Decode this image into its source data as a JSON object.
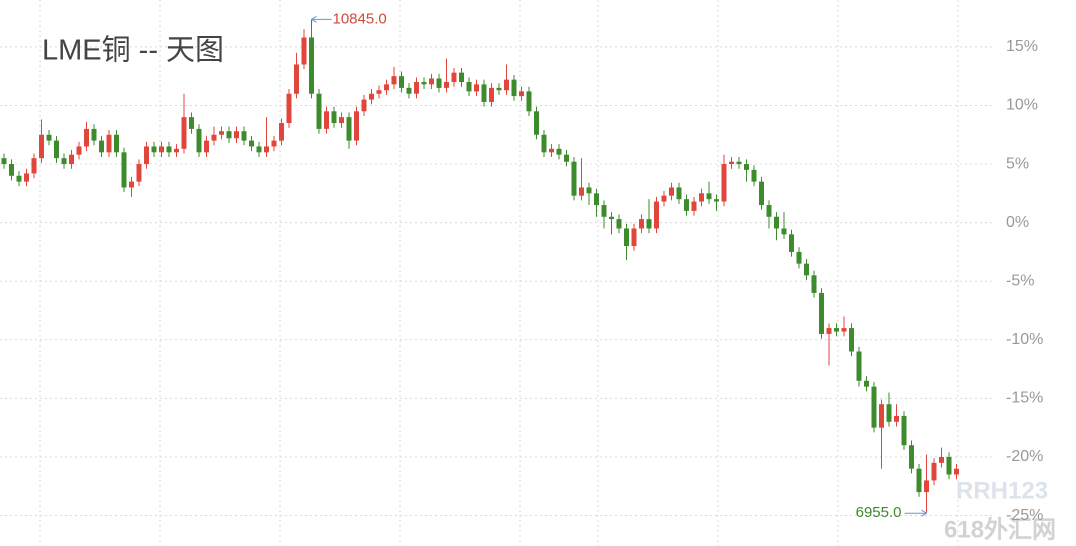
{
  "chart_data": {
    "type": "candlestick",
    "title": "LME铜 -- 天图",
    "open": [
      5.5,
      5.0,
      4.0,
      3.5,
      4.2,
      5.5,
      7.5,
      7.0,
      5.5,
      5.0,
      5.8,
      6.5,
      8.0,
      7.0,
      6.0,
      7.5,
      6.0,
      3.0,
      3.5,
      5.0,
      6.5,
      6.0,
      6.5,
      6.0,
      6.3,
      9.0,
      8.0,
      6.0,
      7.0,
      7.5,
      7.8,
      7.2,
      7.8,
      7.0,
      6.5,
      6.0,
      6.5,
      7.0,
      8.5,
      11.0,
      13.5,
      15.8,
      11.0,
      8.0,
      9.5,
      8.5,
      9.0,
      7.0,
      9.5,
      10.5,
      11.0,
      11.3,
      11.8,
      12.5,
      11.5,
      11.0,
      12.0,
      11.8,
      12.3,
      11.5,
      12.0,
      12.8,
      12.0,
      11.2,
      11.8,
      10.3,
      11.5,
      11.3,
      12.2,
      10.8,
      11.2,
      9.5,
      7.5,
      6.0,
      6.3,
      5.8,
      5.2,
      2.3,
      3.0,
      2.5,
      1.5,
      0.5,
      0.3,
      -0.5,
      -2.0,
      -0.5,
      0.3,
      -0.5,
      1.8,
      2.3,
      3.0,
      2.0,
      1.0,
      1.8,
      2.5,
      2.0,
      1.8,
      5.0,
      5.2,
      5.0,
      4.5,
      3.5,
      1.5,
      0.5,
      -0.5,
      -1.0,
      -2.5,
      -3.5,
      -4.5,
      -6.0,
      -9.5,
      -9.0,
      -9.3,
      -9.0,
      -11.0,
      -13.5,
      -14.0,
      -17.5,
      -15.5,
      -17.0,
      -16.5,
      -19.0,
      -21.0,
      -23.0,
      -22.0,
      -20.5,
      -20.0,
      -21.5
    ],
    "high": [
      5.9,
      5.4,
      4.4,
      4.6,
      5.9,
      8.8,
      7.9,
      7.4,
      5.9,
      6.2,
      6.9,
      8.6,
      8.4,
      7.4,
      7.9,
      7.9,
      6.4,
      3.9,
      5.4,
      6.9,
      6.9,
      6.9,
      6.9,
      6.7,
      11.0,
      9.4,
      8.4,
      7.4,
      8.2,
      8.2,
      8.2,
      8.2,
      8.2,
      7.4,
      6.9,
      9.0,
      7.4,
      8.9,
      11.4,
      14.5,
      16.5,
      17.35,
      11.4,
      9.9,
      9.9,
      9.4,
      9.4,
      9.9,
      10.9,
      11.4,
      11.7,
      12.2,
      13.3,
      12.9,
      11.9,
      12.4,
      12.4,
      12.7,
      12.7,
      14.0,
      13.2,
      13.2,
      12.4,
      12.2,
      12.2,
      11.9,
      11.9,
      13.5,
      12.6,
      11.6,
      11.6,
      9.9,
      7.9,
      6.7,
      6.7,
      6.2,
      5.6,
      5.5,
      3.4,
      2.9,
      1.9,
      0.9,
      0.7,
      -0.1,
      -0.1,
      0.7,
      2.0,
      2.2,
      2.7,
      3.4,
      3.4,
      2.4,
      2.2,
      2.9,
      3.5,
      2.4,
      5.8,
      5.6,
      5.6,
      5.4,
      4.9,
      3.9,
      1.9,
      0.9,
      0.9,
      -0.6,
      -2.1,
      -3.1,
      -4.1,
      -5.6,
      -8.6,
      -8.6,
      -8.0,
      -8.6,
      -10.6,
      -13.1,
      -13.6,
      -15.1,
      -14.5,
      -15.5,
      -16.1,
      -18.6,
      -20.6,
      -19.8,
      -20.1,
      -19.2,
      -19.6,
      -20.6
    ],
    "low": [
      4.6,
      3.6,
      3.1,
      3.1,
      3.8,
      5.1,
      6.6,
      5.1,
      4.6,
      4.6,
      5.4,
      6.1,
      6.6,
      5.6,
      5.6,
      5.6,
      2.6,
      2.2,
      3.1,
      4.6,
      5.6,
      5.6,
      5.6,
      5.6,
      5.9,
      7.6,
      5.6,
      5.6,
      6.6,
      7.1,
      6.8,
      6.8,
      6.6,
      6.1,
      5.6,
      5.6,
      6.1,
      6.6,
      8.1,
      10.6,
      13.1,
      10.6,
      7.6,
      7.6,
      8.1,
      8.1,
      6.3,
      6.6,
      9.1,
      10.1,
      10.6,
      10.9,
      11.4,
      11.1,
      10.6,
      10.6,
      11.4,
      11.4,
      11.1,
      11.1,
      11.6,
      11.6,
      10.8,
      10.8,
      9.9,
      9.9,
      10.9,
      10.9,
      10.4,
      10.4,
      9.1,
      7.1,
      5.6,
      5.6,
      5.4,
      4.8,
      1.9,
      1.9,
      1.5,
      0.5,
      -0.5,
      -1.0,
      -0.9,
      -3.2,
      -2.4,
      -0.9,
      -0.9,
      -0.9,
      1.4,
      1.9,
      1.6,
      0.6,
      0.6,
      1.4,
      1.6,
      1.0,
      1.4,
      4.6,
      4.6,
      3.5,
      3.1,
      1.1,
      -0.5,
      -1.5,
      -1.4,
      -2.9,
      -3.9,
      -4.9,
      -6.4,
      -9.9,
      -12.2,
      -9.7,
      -9.7,
      -11.4,
      -14.0,
      -14.4,
      -17.9,
      -21.0,
      -17.4,
      -17.4,
      -19.4,
      -21.4,
      -23.4,
      -24.8,
      -22.4,
      -20.9,
      -21.9,
      -21.9
    ],
    "close": [
      5.0,
      4.0,
      3.5,
      4.2,
      5.5,
      7.5,
      7.0,
      5.5,
      5.0,
      5.8,
      6.5,
      8.0,
      7.0,
      6.0,
      7.5,
      6.0,
      3.0,
      3.5,
      5.0,
      6.5,
      6.0,
      6.5,
      6.0,
      6.3,
      9.0,
      8.0,
      6.0,
      7.0,
      7.5,
      7.8,
      7.2,
      7.8,
      7.0,
      6.5,
      6.0,
      6.5,
      7.0,
      8.5,
      11.0,
      13.5,
      15.8,
      11.0,
      8.0,
      9.5,
      8.5,
      9.0,
      7.0,
      9.5,
      10.5,
      11.0,
      11.3,
      11.8,
      12.5,
      11.5,
      11.0,
      12.0,
      11.8,
      12.3,
      11.5,
      12.0,
      12.8,
      12.0,
      11.2,
      11.8,
      10.3,
      11.5,
      11.3,
      12.2,
      10.8,
      11.2,
      9.5,
      7.5,
      6.0,
      6.3,
      5.8,
      5.2,
      2.3,
      3.0,
      2.5,
      1.5,
      0.5,
      0.3,
      -0.5,
      -2.0,
      -0.5,
      0.3,
      -0.5,
      1.8,
      2.3,
      3.0,
      2.0,
      1.0,
      1.8,
      2.5,
      2.0,
      1.8,
      5.0,
      5.2,
      5.0,
      4.5,
      3.5,
      1.5,
      0.5,
      -0.5,
      -1.0,
      -2.5,
      -3.5,
      -4.5,
      -6.0,
      -9.5,
      -9.0,
      -9.3,
      -9.0,
      -11.0,
      -13.5,
      -14.0,
      -17.5,
      -15.5,
      -17.0,
      -16.5,
      -19.0,
      -21.0,
      -23.0,
      -22.0,
      -20.5,
      -20.0,
      -21.5,
      -21.0
    ],
    "up_color": "#e0463c",
    "down_color": "#3d8b2c",
    "max_label": "10845.0",
    "min_label": "6955.0",
    "ylim": [
      -27.6,
      19.0
    ],
    "yticks": [
      {
        "value": 15,
        "label": "15%"
      },
      {
        "value": 10,
        "label": "10%"
      },
      {
        "value": 5,
        "label": "5%"
      },
      {
        "value": 0,
        "label": "0%"
      },
      {
        "value": -5,
        "label": "-5%"
      },
      {
        "value": -10,
        "label": "-10%"
      },
      {
        "value": -15,
        "label": "-15%"
      },
      {
        "value": -20,
        "label": "-20%"
      },
      {
        "value": -25,
        "label": "-25%"
      }
    ],
    "grid": true,
    "watermark": [
      "RRH123",
      "618外汇网"
    ]
  }
}
